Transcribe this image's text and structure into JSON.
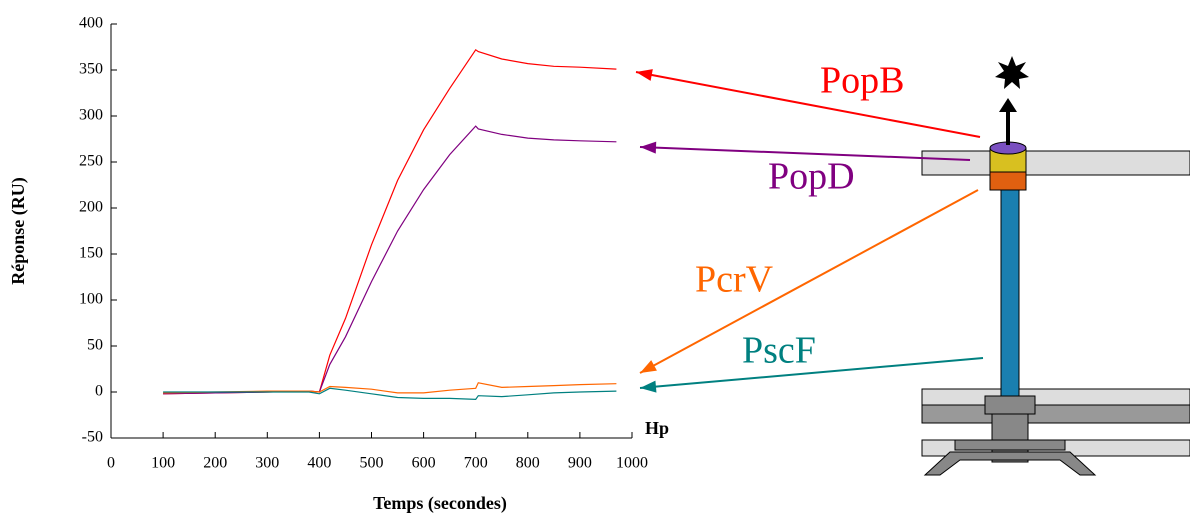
{
  "chart_data": {
    "type": "line",
    "x_label": "Temps (secondes)",
    "y_label": "Réponse (RU)",
    "x_axis_note": "Hp",
    "x": [
      100,
      200,
      300,
      380,
      400,
      420,
      450,
      500,
      550,
      600,
      650,
      700,
      705,
      750,
      800,
      850,
      900,
      970
    ],
    "series": [
      {
        "name": "PopB",
        "color": "#ff0000",
        "values": [
          -2,
          -1,
          0,
          1,
          0,
          40,
          80,
          160,
          230,
          285,
          330,
          372,
          370,
          362,
          357,
          354,
          353,
          351
        ]
      },
      {
        "name": "PopD",
        "color": "#800080",
        "values": [
          -2,
          -1,
          0,
          1,
          0,
          30,
          60,
          120,
          175,
          220,
          258,
          289,
          286,
          280,
          276,
          274,
          273,
          272
        ]
      },
      {
        "name": "PcrV",
        "color": "#ff6600",
        "values": [
          -1,
          0,
          1,
          1,
          0,
          6,
          5,
          3,
          -1,
          -1,
          2,
          4,
          10,
          5,
          6,
          7,
          8,
          9
        ]
      },
      {
        "name": "PscF",
        "color": "#008080",
        "values": [
          0,
          0,
          0,
          0,
          -2,
          4,
          2,
          -2,
          -6,
          -7,
          -7,
          -8,
          -4,
          -5,
          -3,
          -1,
          0,
          1
        ]
      }
    ],
    "xlim": [
      0,
      1000
    ],
    "xticks": [
      0,
      100,
      200,
      300,
      400,
      500,
      600,
      700,
      800,
      900,
      1000
    ],
    "ylim": [
      -50,
      400
    ],
    "yticks": [
      -50,
      0,
      50,
      100,
      150,
      200,
      250,
      300,
      350,
      400
    ]
  }
}
